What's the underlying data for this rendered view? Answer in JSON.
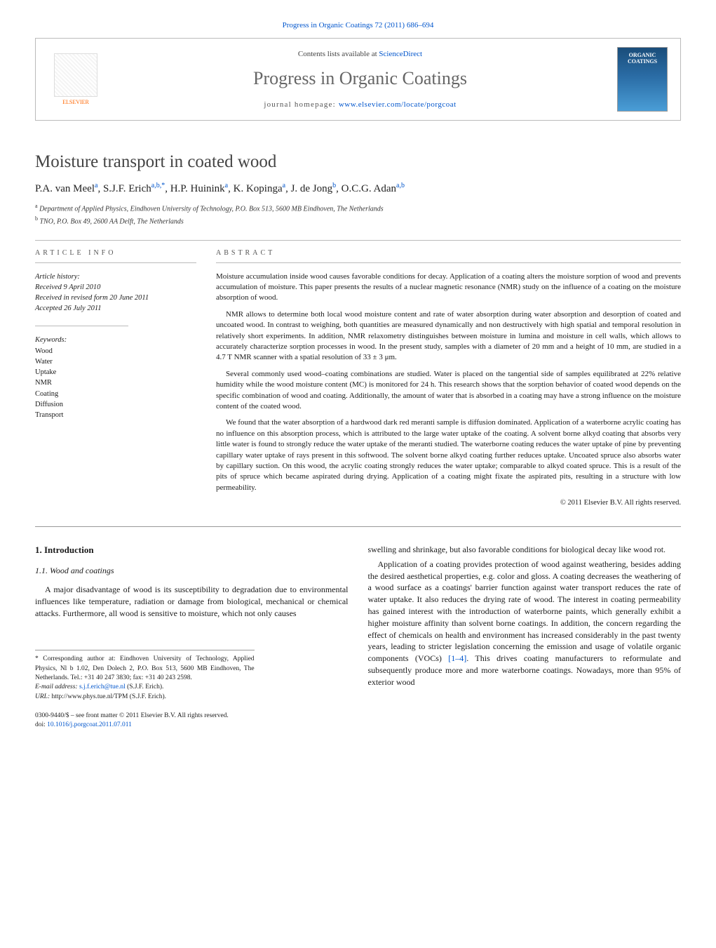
{
  "header": {
    "citation": "Progress in Organic Coatings 72 (2011) 686–694",
    "contents_prefix": "Contents lists available at ",
    "contents_link": "ScienceDirect",
    "journal_title": "Progress in Organic Coatings",
    "homepage_prefix": "journal homepage: ",
    "homepage_url": "www.elsevier.com/locate/porgcoat",
    "publisher": "ELSEVIER",
    "cover_label_1": "ORGANIC",
    "cover_label_2": "COATINGS"
  },
  "article": {
    "title": "Moisture transport in coated wood",
    "authors_html": "P.A. van Meel<sup>a</sup>, S.J.F. Erich<sup>a,b,*</sup>, H.P. Huinink<sup>a</sup>, K. Kopinga<sup>a</sup>, J. de Jong<sup>b</sup>, O.C.G. Adan<sup>a,b</sup>",
    "affiliations": {
      "a": "Department of Applied Physics, Eindhoven University of Technology, P.O. Box 513, 5600 MB Eindhoven, The Netherlands",
      "b": "TNO, P.O. Box 49, 2600 AA Delft, The Netherlands"
    }
  },
  "info": {
    "section_label": "article info",
    "history_label": "Article history:",
    "received": "Received 9 April 2010",
    "revised": "Received in revised form 20 June 2011",
    "accepted": "Accepted 26 July 2011",
    "keywords_label": "Keywords:",
    "keywords": [
      "Wood",
      "Water",
      "Uptake",
      "NMR",
      "Coating",
      "Diffusion",
      "Transport"
    ]
  },
  "abstract": {
    "section_label": "abstract",
    "paragraphs": [
      "Moisture accumulation inside wood causes favorable conditions for decay. Application of a coating alters the moisture sorption of wood and prevents accumulation of moisture. This paper presents the results of a nuclear magnetic resonance (NMR) study on the influence of a coating on the moisture absorption of wood.",
      "NMR allows to determine both local wood moisture content and rate of water absorption during water absorption and desorption of coated and uncoated wood. In contrast to weighing, both quantities are measured dynamically and non destructively with high spatial and temporal resolution in relatively short experiments. In addition, NMR relaxometry distinguishes between moisture in lumina and moisture in cell walls, which allows to accurately characterize sorption processes in wood. In the present study, samples with a diameter of 20 mm and a height of 10 mm, are studied in a 4.7 T NMR scanner with a spatial resolution of 33 ± 3 μm.",
      "Several commonly used wood–coating combinations are studied. Water is placed on the tangential side of samples equilibrated at 22% relative humidity while the wood moisture content (MC) is monitored for 24 h. This research shows that the sorption behavior of coated wood depends on the specific combination of wood and coating. Additionally, the amount of water that is absorbed in a coating may have a strong influence on the moisture content of the coated wood.",
      "We found that the water absorption of a hardwood dark red meranti sample is diffusion dominated. Application of a waterborne acrylic coating has no influence on this absorption process, which is attributed to the large water uptake of the coating. A solvent borne alkyd coating that absorbs very little water is found to strongly reduce the water uptake of the meranti studied. The waterborne coating reduces the water uptake of pine by preventing capillary water uptake of rays present in this softwood. The solvent borne alkyd coating further reduces uptake. Uncoated spruce also absorbs water by capillary suction. On this wood, the acrylic coating strongly reduces the water uptake; comparable to alkyd coated spruce. This is a result of the pits of spruce which became aspirated during drying. Application of a coating might fixate the aspirated pits, resulting in a structure with low permeability."
    ],
    "copyright": "© 2011 Elsevier B.V. All rights reserved."
  },
  "body": {
    "section_number": "1.",
    "section_title": "Introduction",
    "subsection_number": "1.1.",
    "subsection_title": "Wood and coatings",
    "left_para": "A major disadvantage of wood is its susceptibility to degradation due to environmental influences like temperature, radiation or damage from biological, mechanical or chemical attacks. Furthermore, all wood is sensitive to moisture, which not only causes",
    "right_para_1": "swelling and shrinkage, but also favorable conditions for biological decay like wood rot.",
    "right_para_2_pre": "Application of a coating provides protection of wood against weathering, besides adding the desired aesthetical properties, e.g. color and gloss. A coating decreases the weathering of a wood surface as a coatings' barrier function against water transport reduces the rate of water uptake. It also reduces the drying rate of wood. The interest in coating permeability has gained interest with the introduction of waterborne paints, which generally exhibit a higher moisture affinity than solvent borne coatings. In addition, the concern regarding the effect of chemicals on health and environment has increased considerably in the past twenty years, leading to stricter legislation concerning the emission and usage of volatile organic components (VOCs) ",
    "right_ref": "[1–4]",
    "right_para_2_post": ". This drives coating manufacturers to reformulate and subsequently produce more and more waterborne coatings. Nowadays, more than 95% of exterior wood"
  },
  "footnotes": {
    "corr": "* Corresponding author at: Eindhoven University of Technology, Applied Physics, Nl b 1.02, Den Dolech 2, P.O. Box 513, 5600 MB Eindhoven, The Netherlands. Tel.: +31 40 247 3830; fax: +31 40 243 2598.",
    "email_label": "E-mail address: ",
    "email": "s.j.f.erich@tue.nl",
    "email_suffix": " (S.J.F. Erich).",
    "url_label": "URL: ",
    "url": "http://www.phys.tue.nl/TPM",
    "url_suffix": " (S.J.F. Erich)."
  },
  "bottom": {
    "issn": "0300-9440/$ – see front matter © 2011 Elsevier B.V. All rights reserved.",
    "doi_label": "doi:",
    "doi": "10.1016/j.porgcoat.2011.07.011"
  },
  "colors": {
    "link": "#0055cc",
    "text": "#1a1a1a",
    "muted": "#555",
    "border": "#bbb",
    "elsevier": "#ff6600"
  }
}
